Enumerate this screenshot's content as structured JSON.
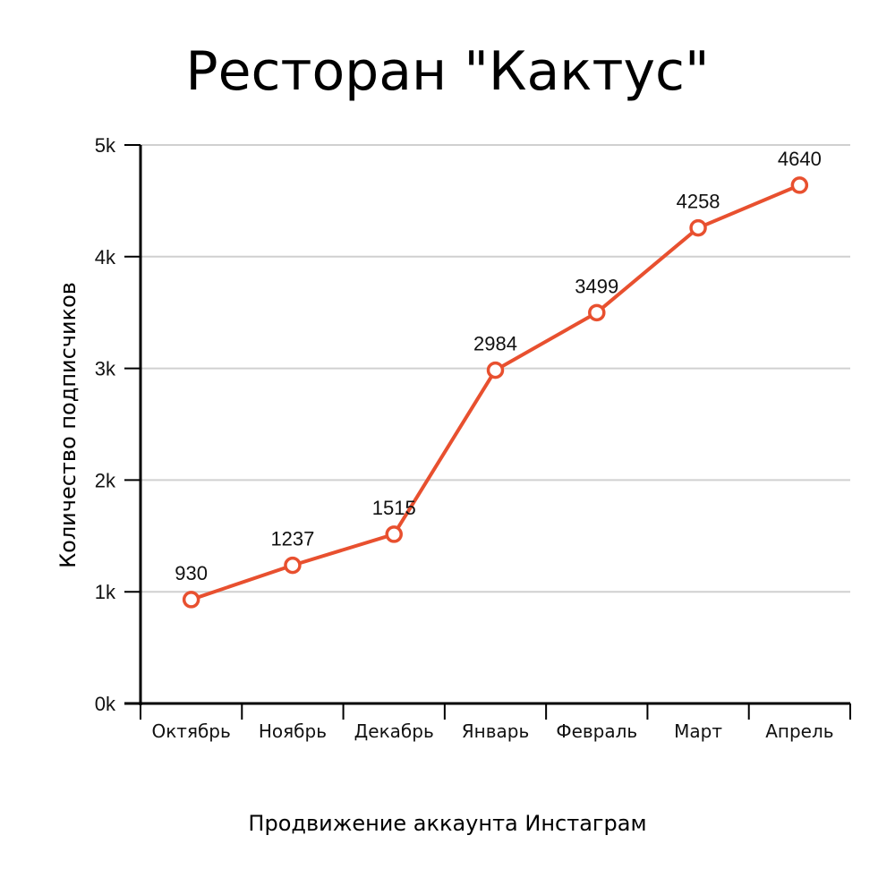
{
  "chart_data": {
    "type": "line",
    "title": "Ресторан \"Кактус\"",
    "xlabel": "Продвижение аккаунта Инстаграм",
    "ylabel": "Количество подписчиков",
    "categories": [
      "Октябрь",
      "Ноябрь",
      "Декабрь",
      "Январь",
      "Февраль",
      "Март",
      "Апрель"
    ],
    "series": [
      {
        "values": [
          930,
          1237,
          1515,
          2984,
          3499,
          4258,
          4640
        ],
        "color": "#e8502f"
      }
    ],
    "y_ticks": [
      {
        "value": 0,
        "label": "0k"
      },
      {
        "value": 1000,
        "label": "1k"
      },
      {
        "value": 2000,
        "label": "2k"
      },
      {
        "value": 3000,
        "label": "3k"
      },
      {
        "value": 4000,
        "label": "4k"
      },
      {
        "value": 5000,
        "label": "5k"
      }
    ],
    "ylim": [
      0,
      5000
    ],
    "grid": true,
    "legend": "none",
    "data_labels": true
  }
}
